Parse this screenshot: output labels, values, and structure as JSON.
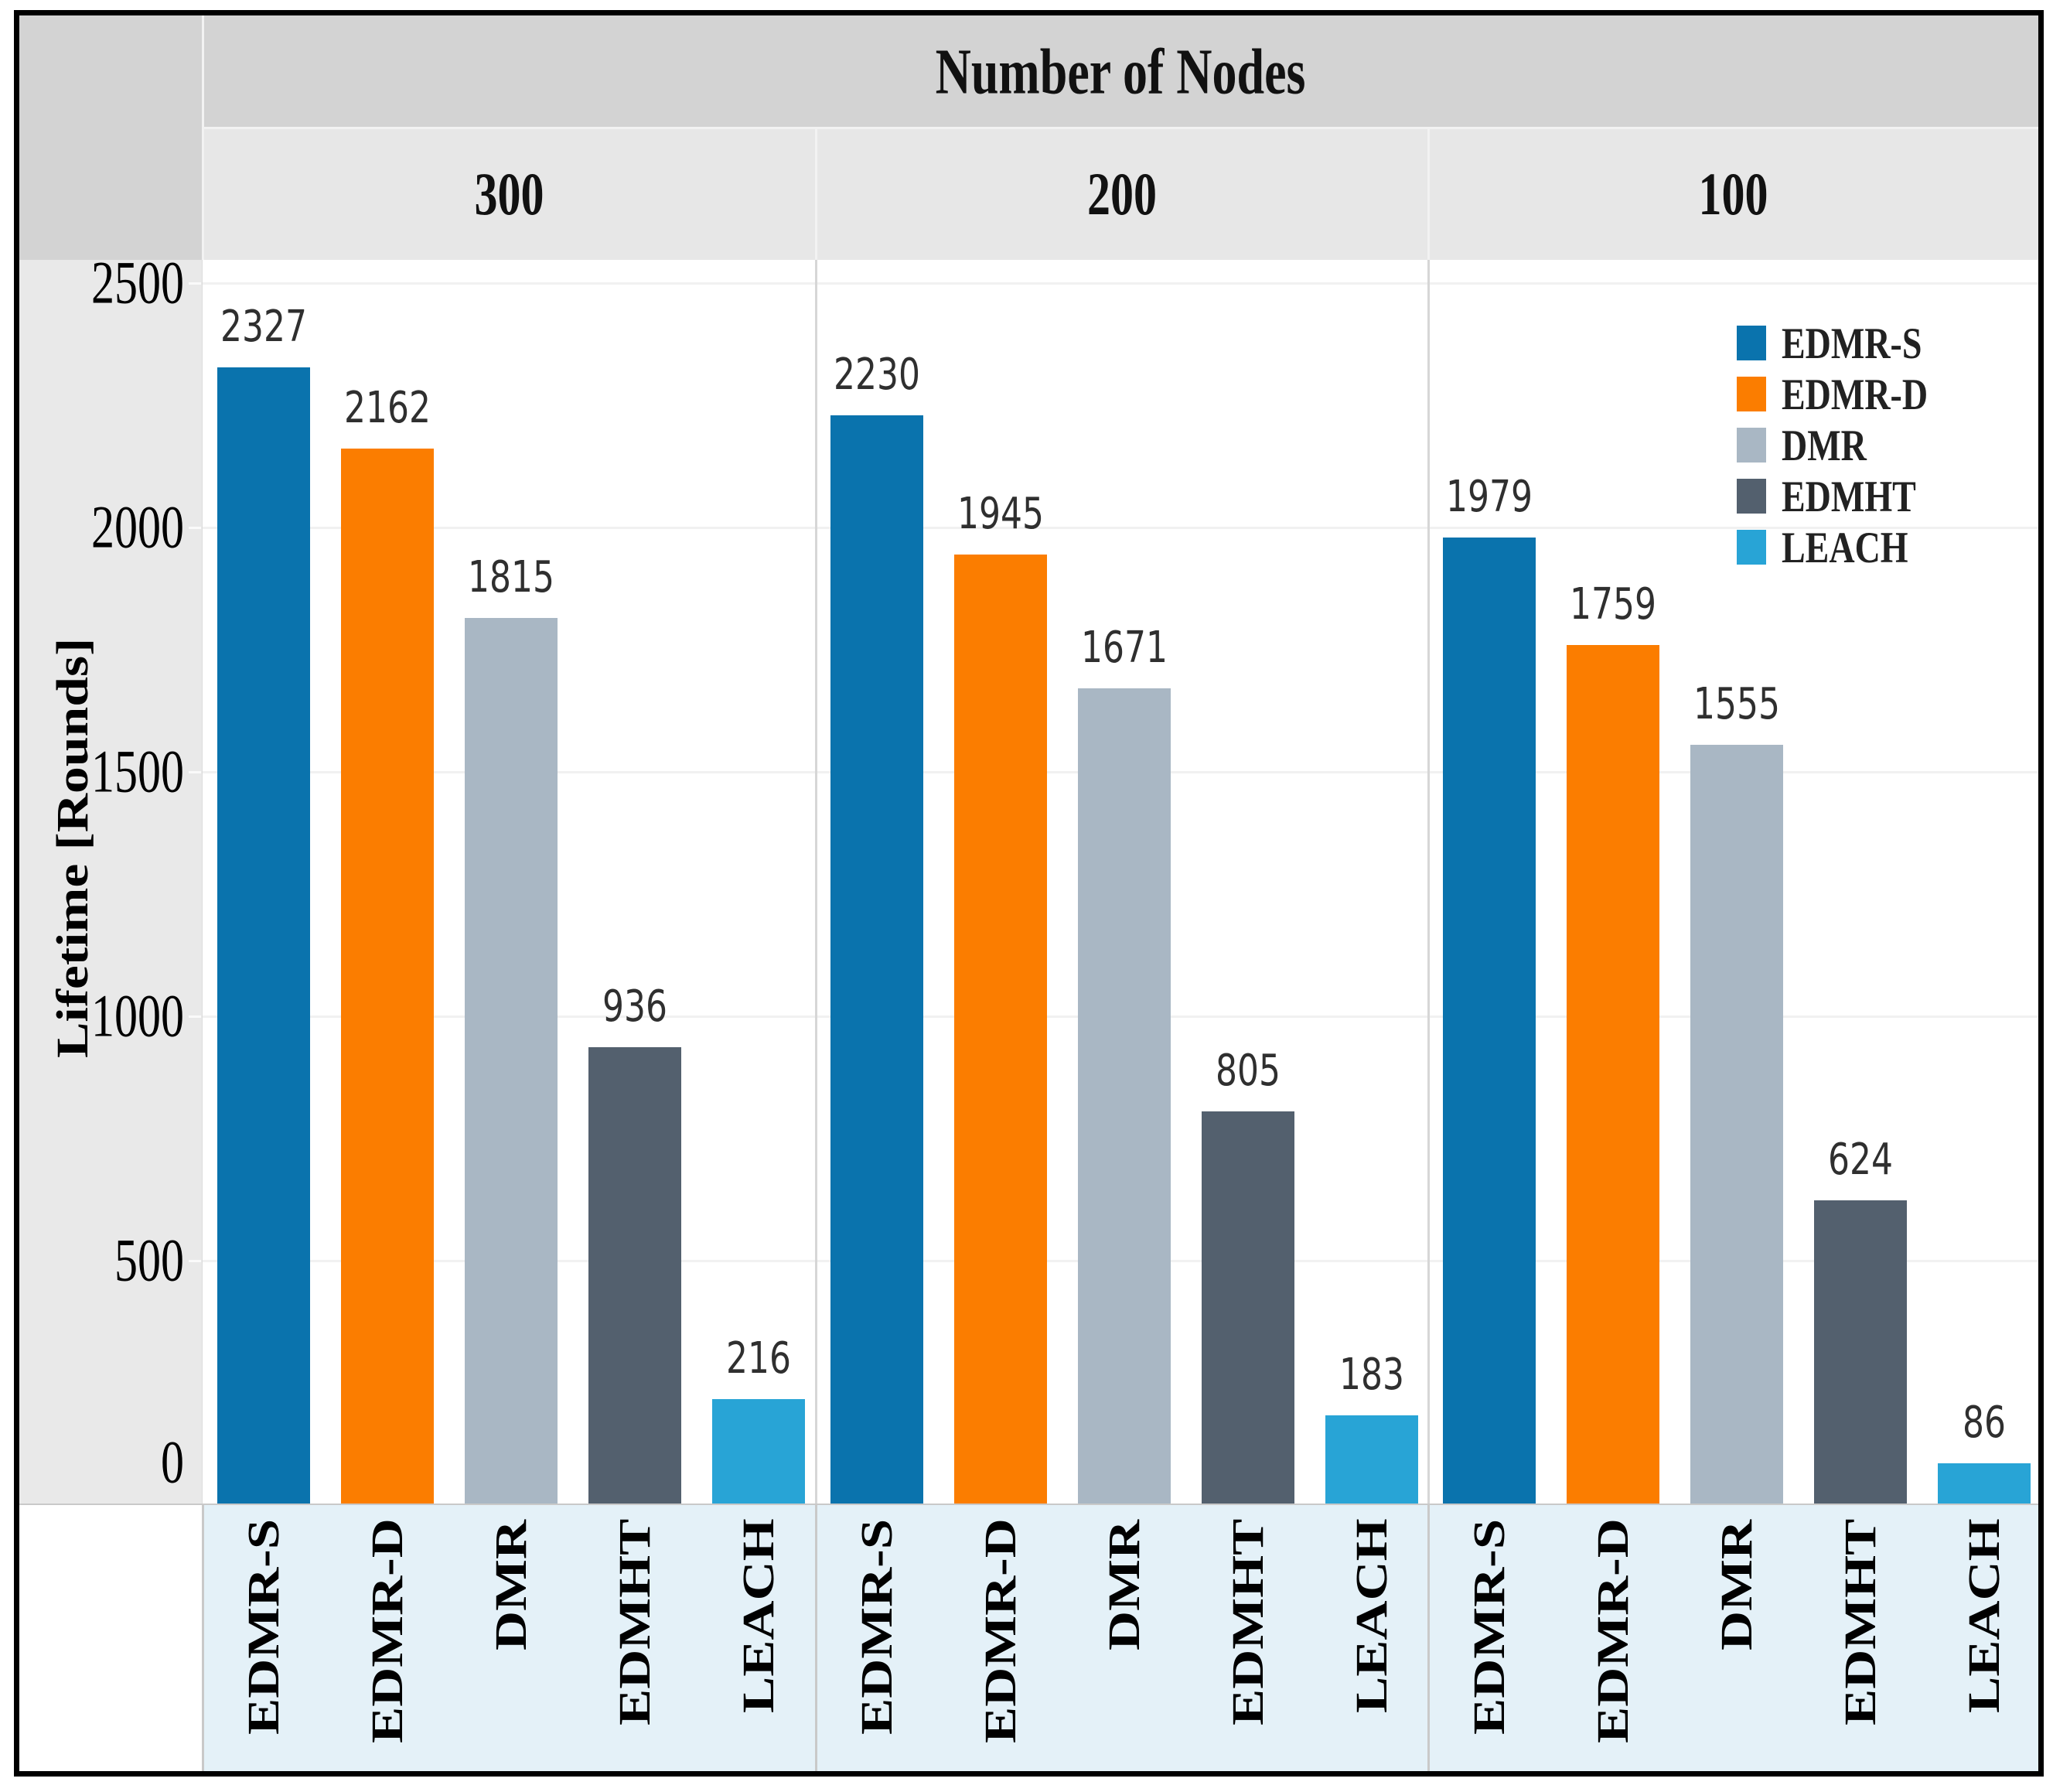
{
  "header": {
    "title": "Number of Nodes",
    "groups": [
      "300",
      "200",
      "100"
    ]
  },
  "y_axis": {
    "title": "Lifetime [Rounds]",
    "tick_labels": [
      "0",
      "500",
      "1000",
      "1500",
      "2000",
      "2500"
    ]
  },
  "legend": {
    "items": [
      {
        "label": "EDMR-S",
        "color": "#0a73ad"
      },
      {
        "label": "EDMR-D",
        "color": "#fb7d00"
      },
      {
        "label": "DMR",
        "color": "#a9b7c4"
      },
      {
        "label": "EDMHT",
        "color": "#53606e"
      },
      {
        "label": "LEACH",
        "color": "#28a4d6"
      }
    ]
  },
  "chart_data": {
    "type": "bar",
    "title": "Number of Nodes",
    "xlabel": "",
    "ylabel": "Lifetime [Rounds]",
    "ylim": [
      0,
      2500
    ],
    "yticks": [
      0,
      500,
      1000,
      1500,
      2000,
      2500
    ],
    "grid": true,
    "legend_position": "top-right",
    "categories": [
      "EDMR-S",
      "EDMR-D",
      "DMR",
      "EDMHT",
      "LEACH"
    ],
    "category_colors": [
      "#0a73ad",
      "#fb7d00",
      "#a9b7c4",
      "#53606e",
      "#28a4d6"
    ],
    "groups": [
      {
        "label": "300",
        "values": [
          2327,
          2162,
          1815,
          936,
          216
        ]
      },
      {
        "label": "200",
        "values": [
          2230,
          1945,
          1671,
          805,
          183
        ]
      },
      {
        "label": "100",
        "values": [
          1979,
          1759,
          1555,
          624,
          86
        ]
      }
    ]
  },
  "colors": {
    "frame_border": "#000000",
    "title_band_bg": "#d3d3d3",
    "group_band_bg": "#e7e7e7",
    "gutter_bg": "#e9e9e9",
    "plot_bg": "#ffffff",
    "category_band_bg": "#e4f1f8",
    "grid_line": "#f1f1f1",
    "panel_divider": "#d6d6d6",
    "baseline": "#c9c9c9"
  }
}
